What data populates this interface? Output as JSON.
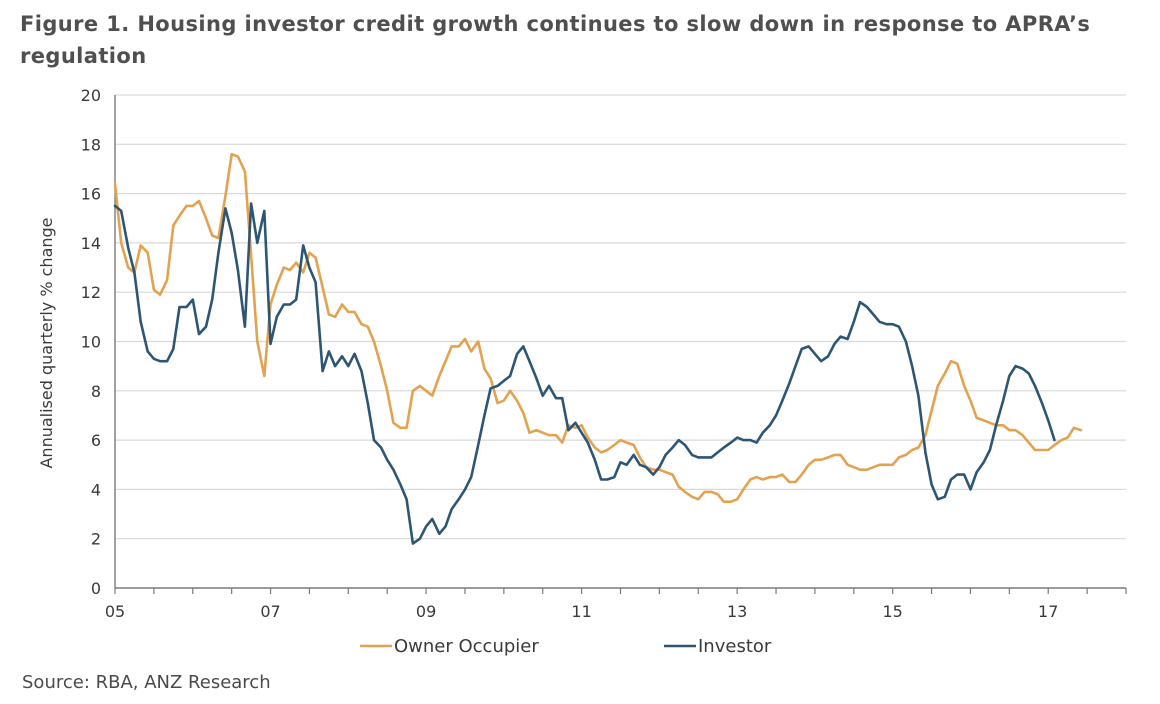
{
  "title": "Figure 1. Housing investor credit growth continues to slow down in response to APRA’s regulation",
  "source": "Source: RBA, ANZ Research",
  "colors": {
    "owner_occupier": "#E3A24F",
    "investor": "#2D5675",
    "grid": "#d9d9d9",
    "axis": "#7a7a7a"
  },
  "chart_data": {
    "type": "line",
    "title": "Figure 1. Housing investor credit growth continues to slow down in response to APRA’s regulation",
    "xlabel": "",
    "ylabel": "Annualised quarterly % change",
    "xlim": [
      2005.0,
      2018.0
    ],
    "ylim": [
      0,
      20
    ],
    "yticks": [
      0,
      2,
      4,
      6,
      8,
      10,
      12,
      14,
      16,
      18,
      20
    ],
    "xticks": [
      {
        "value": 2005.0,
        "label": "05"
      },
      {
        "value": 2007.0,
        "label": "07"
      },
      {
        "value": 2009.0,
        "label": "09"
      },
      {
        "value": 2011.0,
        "label": "11"
      },
      {
        "value": 2013.0,
        "label": "13"
      },
      {
        "value": 2015.0,
        "label": "15"
      },
      {
        "value": 2017.0,
        "label": "17"
      }
    ],
    "grid": "horizontal",
    "legend": "bottom",
    "series": [
      {
        "name": "Owner Occupier",
        "color": "#E3A24F",
        "points": [
          [
            2005.0,
            16.4
          ],
          [
            2005.08,
            14.0
          ],
          [
            2005.17,
            13.0
          ],
          [
            2005.25,
            12.8
          ],
          [
            2005.33,
            13.9
          ],
          [
            2005.42,
            13.6
          ],
          [
            2005.5,
            12.1
          ],
          [
            2005.58,
            11.9
          ],
          [
            2005.67,
            12.5
          ],
          [
            2005.75,
            14.7
          ],
          [
            2005.83,
            15.1
          ],
          [
            2005.92,
            15.5
          ],
          [
            2006.0,
            15.5
          ],
          [
            2006.08,
            15.7
          ],
          [
            2006.17,
            15.0
          ],
          [
            2006.25,
            14.3
          ],
          [
            2006.33,
            14.2
          ],
          [
            2006.42,
            15.9
          ],
          [
            2006.5,
            17.6
          ],
          [
            2006.58,
            17.5
          ],
          [
            2006.67,
            16.9
          ],
          [
            2006.75,
            13.5
          ],
          [
            2006.83,
            10.0
          ],
          [
            2006.92,
            8.6
          ],
          [
            2007.0,
            11.5
          ],
          [
            2007.08,
            12.3
          ],
          [
            2007.17,
            13.0
          ],
          [
            2007.25,
            12.9
          ],
          [
            2007.33,
            13.2
          ],
          [
            2007.42,
            12.8
          ],
          [
            2007.5,
            13.6
          ],
          [
            2007.58,
            13.4
          ],
          [
            2007.67,
            12.2
          ],
          [
            2007.75,
            11.1
          ],
          [
            2007.83,
            11.0
          ],
          [
            2007.92,
            11.5
          ],
          [
            2008.0,
            11.2
          ],
          [
            2008.08,
            11.2
          ],
          [
            2008.17,
            10.7
          ],
          [
            2008.25,
            10.6
          ],
          [
            2008.33,
            10.0
          ],
          [
            2008.42,
            9.0
          ],
          [
            2008.5,
            8.0
          ],
          [
            2008.58,
            6.7
          ],
          [
            2008.67,
            6.5
          ],
          [
            2008.75,
            6.5
          ],
          [
            2008.83,
            8.0
          ],
          [
            2008.92,
            8.2
          ],
          [
            2009.0,
            8.0
          ],
          [
            2009.08,
            7.8
          ],
          [
            2009.17,
            8.6
          ],
          [
            2009.25,
            9.2
          ],
          [
            2009.33,
            9.8
          ],
          [
            2009.42,
            9.8
          ],
          [
            2009.5,
            10.1
          ],
          [
            2009.58,
            9.6
          ],
          [
            2009.67,
            10.0
          ],
          [
            2009.75,
            8.9
          ],
          [
            2009.83,
            8.5
          ],
          [
            2009.92,
            7.5
          ],
          [
            2010.0,
            7.6
          ],
          [
            2010.08,
            8.0
          ],
          [
            2010.17,
            7.6
          ],
          [
            2010.25,
            7.1
          ],
          [
            2010.33,
            6.3
          ],
          [
            2010.42,
            6.4
          ],
          [
            2010.5,
            6.3
          ],
          [
            2010.58,
            6.2
          ],
          [
            2010.67,
            6.2
          ],
          [
            2010.75,
            5.9
          ],
          [
            2010.83,
            6.6
          ],
          [
            2010.92,
            6.5
          ],
          [
            2011.0,
            6.6
          ],
          [
            2011.08,
            6.1
          ],
          [
            2011.17,
            5.7
          ],
          [
            2011.25,
            5.5
          ],
          [
            2011.33,
            5.6
          ],
          [
            2011.42,
            5.8
          ],
          [
            2011.5,
            6.0
          ],
          [
            2011.58,
            5.9
          ],
          [
            2011.67,
            5.8
          ],
          [
            2011.75,
            5.3
          ],
          [
            2011.83,
            4.9
          ],
          [
            2011.92,
            4.8
          ],
          [
            2012.0,
            4.8
          ],
          [
            2012.08,
            4.7
          ],
          [
            2012.17,
            4.6
          ],
          [
            2012.25,
            4.1
          ],
          [
            2012.33,
            3.9
          ],
          [
            2012.42,
            3.7
          ],
          [
            2012.5,
            3.6
          ],
          [
            2012.58,
            3.9
          ],
          [
            2012.67,
            3.9
          ],
          [
            2012.75,
            3.8
          ],
          [
            2012.83,
            3.5
          ],
          [
            2012.92,
            3.5
          ],
          [
            2013.0,
            3.6
          ],
          [
            2013.08,
            4.0
          ],
          [
            2013.17,
            4.4
          ],
          [
            2013.25,
            4.5
          ],
          [
            2013.33,
            4.4
          ],
          [
            2013.42,
            4.5
          ],
          [
            2013.5,
            4.5
          ],
          [
            2013.58,
            4.6
          ],
          [
            2013.67,
            4.3
          ],
          [
            2013.75,
            4.3
          ],
          [
            2013.83,
            4.6
          ],
          [
            2013.92,
            5.0
          ],
          [
            2014.0,
            5.2
          ],
          [
            2014.08,
            5.2
          ],
          [
            2014.17,
            5.3
          ],
          [
            2014.25,
            5.4
          ],
          [
            2014.33,
            5.4
          ],
          [
            2014.42,
            5.0
          ],
          [
            2014.5,
            4.9
          ],
          [
            2014.58,
            4.8
          ],
          [
            2014.67,
            4.8
          ],
          [
            2014.75,
            4.9
          ],
          [
            2014.83,
            5.0
          ],
          [
            2014.92,
            5.0
          ],
          [
            2015.0,
            5.0
          ],
          [
            2015.08,
            5.3
          ],
          [
            2015.17,
            5.4
          ],
          [
            2015.25,
            5.6
          ],
          [
            2015.33,
            5.7
          ],
          [
            2015.42,
            6.2
          ],
          [
            2015.5,
            7.2
          ],
          [
            2015.58,
            8.2
          ],
          [
            2015.67,
            8.7
          ],
          [
            2015.75,
            9.2
          ],
          [
            2015.83,
            9.1
          ],
          [
            2015.92,
            8.2
          ],
          [
            2016.0,
            7.6
          ],
          [
            2016.08,
            6.9
          ],
          [
            2016.17,
            6.8
          ],
          [
            2016.25,
            6.7
          ],
          [
            2016.33,
            6.6
          ],
          [
            2016.42,
            6.6
          ],
          [
            2016.5,
            6.4
          ],
          [
            2016.58,
            6.4
          ],
          [
            2016.67,
            6.2
          ],
          [
            2016.75,
            5.9
          ],
          [
            2016.83,
            5.6
          ],
          [
            2016.92,
            5.6
          ],
          [
            2017.0,
            5.6
          ],
          [
            2017.08,
            5.8
          ],
          [
            2017.17,
            6.0
          ],
          [
            2017.25,
            6.1
          ],
          [
            2017.33,
            6.5
          ],
          [
            2017.42,
            6.4
          ]
        ]
      },
      {
        "name": "Investor",
        "color": "#2D5675",
        "points": [
          [
            2005.0,
            15.5
          ],
          [
            2005.08,
            15.3
          ],
          [
            2005.17,
            13.8
          ],
          [
            2005.25,
            12.8
          ],
          [
            2005.33,
            10.8
          ],
          [
            2005.42,
            9.6
          ],
          [
            2005.5,
            9.3
          ],
          [
            2005.58,
            9.2
          ],
          [
            2005.67,
            9.2
          ],
          [
            2005.75,
            9.7
          ],
          [
            2005.83,
            11.4
          ],
          [
            2005.92,
            11.4
          ],
          [
            2006.0,
            11.7
          ],
          [
            2006.08,
            10.3
          ],
          [
            2006.17,
            10.6
          ],
          [
            2006.25,
            11.7
          ],
          [
            2006.33,
            13.6
          ],
          [
            2006.42,
            15.4
          ],
          [
            2006.5,
            14.4
          ],
          [
            2006.58,
            12.9
          ],
          [
            2006.67,
            10.6
          ],
          [
            2006.75,
            15.6
          ],
          [
            2006.83,
            14.0
          ],
          [
            2006.92,
            15.3
          ],
          [
            2007.0,
            9.9
          ],
          [
            2007.08,
            11.0
          ],
          [
            2007.17,
            11.5
          ],
          [
            2007.25,
            11.5
          ],
          [
            2007.33,
            11.7
          ],
          [
            2007.42,
            13.9
          ],
          [
            2007.5,
            13.0
          ],
          [
            2007.58,
            12.4
          ],
          [
            2007.67,
            8.8
          ],
          [
            2007.75,
            9.6
          ],
          [
            2007.83,
            9.0
          ],
          [
            2007.92,
            9.4
          ],
          [
            2008.0,
            9.0
          ],
          [
            2008.08,
            9.5
          ],
          [
            2008.17,
            8.8
          ],
          [
            2008.25,
            7.5
          ],
          [
            2008.33,
            6.0
          ],
          [
            2008.42,
            5.7
          ],
          [
            2008.5,
            5.2
          ],
          [
            2008.58,
            4.8
          ],
          [
            2008.67,
            4.2
          ],
          [
            2008.75,
            3.6
          ],
          [
            2008.83,
            1.8
          ],
          [
            2008.92,
            2.0
          ],
          [
            2009.0,
            2.5
          ],
          [
            2009.08,
            2.8
          ],
          [
            2009.17,
            2.2
          ],
          [
            2009.25,
            2.5
          ],
          [
            2009.33,
            3.2
          ],
          [
            2009.42,
            3.6
          ],
          [
            2009.5,
            4.0
          ],
          [
            2009.58,
            4.5
          ],
          [
            2009.67,
            5.8
          ],
          [
            2009.75,
            7.0
          ],
          [
            2009.83,
            8.1
          ],
          [
            2009.92,
            8.2
          ],
          [
            2010.0,
            8.4
          ],
          [
            2010.08,
            8.6
          ],
          [
            2010.17,
            9.5
          ],
          [
            2010.25,
            9.8
          ],
          [
            2010.33,
            9.2
          ],
          [
            2010.42,
            8.5
          ],
          [
            2010.5,
            7.8
          ],
          [
            2010.58,
            8.2
          ],
          [
            2010.67,
            7.7
          ],
          [
            2010.75,
            7.7
          ],
          [
            2010.83,
            6.4
          ],
          [
            2010.92,
            6.7
          ],
          [
            2011.0,
            6.3
          ],
          [
            2011.08,
            5.9
          ],
          [
            2011.17,
            5.2
          ],
          [
            2011.25,
            4.4
          ],
          [
            2011.33,
            4.4
          ],
          [
            2011.42,
            4.5
          ],
          [
            2011.5,
            5.1
          ],
          [
            2011.58,
            5.0
          ],
          [
            2011.67,
            5.4
          ],
          [
            2011.75,
            5.0
          ],
          [
            2011.83,
            4.9
          ],
          [
            2011.92,
            4.6
          ],
          [
            2012.0,
            4.9
          ],
          [
            2012.08,
            5.4
          ],
          [
            2012.17,
            5.7
          ],
          [
            2012.25,
            6.0
          ],
          [
            2012.33,
            5.8
          ],
          [
            2012.42,
            5.4
          ],
          [
            2012.5,
            5.3
          ],
          [
            2012.58,
            5.3
          ],
          [
            2012.67,
            5.3
          ],
          [
            2012.75,
            5.5
          ],
          [
            2012.83,
            5.7
          ],
          [
            2012.92,
            5.9
          ],
          [
            2013.0,
            6.1
          ],
          [
            2013.08,
            6.0
          ],
          [
            2013.17,
            6.0
          ],
          [
            2013.25,
            5.9
          ],
          [
            2013.33,
            6.3
          ],
          [
            2013.42,
            6.6
          ],
          [
            2013.5,
            7.0
          ],
          [
            2013.58,
            7.6
          ],
          [
            2013.67,
            8.3
          ],
          [
            2013.75,
            9.0
          ],
          [
            2013.83,
            9.7
          ],
          [
            2013.92,
            9.8
          ],
          [
            2014.0,
            9.5
          ],
          [
            2014.08,
            9.2
          ],
          [
            2014.17,
            9.4
          ],
          [
            2014.25,
            9.9
          ],
          [
            2014.33,
            10.2
          ],
          [
            2014.42,
            10.1
          ],
          [
            2014.5,
            10.8
          ],
          [
            2014.58,
            11.6
          ],
          [
            2014.67,
            11.4
          ],
          [
            2014.75,
            11.1
          ],
          [
            2014.83,
            10.8
          ],
          [
            2014.92,
            10.7
          ],
          [
            2015.0,
            10.7
          ],
          [
            2015.08,
            10.6
          ],
          [
            2015.17,
            10.0
          ],
          [
            2015.25,
            9.0
          ],
          [
            2015.33,
            7.8
          ],
          [
            2015.42,
            5.5
          ],
          [
            2015.5,
            4.2
          ],
          [
            2015.58,
            3.6
          ],
          [
            2015.67,
            3.7
          ],
          [
            2015.75,
            4.4
          ],
          [
            2015.83,
            4.6
          ],
          [
            2015.92,
            4.6
          ],
          [
            2016.0,
            4.0
          ],
          [
            2016.08,
            4.7
          ],
          [
            2016.17,
            5.1
          ],
          [
            2016.25,
            5.6
          ],
          [
            2016.33,
            6.6
          ],
          [
            2016.42,
            7.6
          ],
          [
            2016.5,
            8.6
          ],
          [
            2016.58,
            9.0
          ],
          [
            2016.67,
            8.9
          ],
          [
            2016.75,
            8.7
          ],
          [
            2016.83,
            8.2
          ],
          [
            2016.92,
            7.5
          ],
          [
            2017.0,
            6.8
          ],
          [
            2017.08,
            6.0
          ]
        ]
      }
    ]
  }
}
